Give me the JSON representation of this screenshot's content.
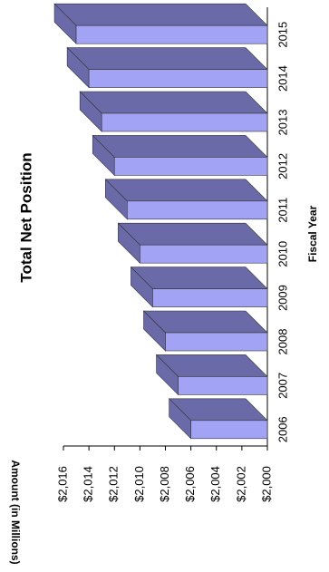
{
  "chart_data": {
    "type": "bar3d",
    "title": "Total Net Position",
    "x_label": "Fiscal Year",
    "y_label": "Amount (in Millions)",
    "categories": [
      "2006",
      "2007",
      "2008",
      "2009",
      "2010",
      "2011",
      "2012",
      "2013",
      "2014",
      "2015"
    ],
    "values": [
      2006,
      2007,
      2008,
      2009,
      2010,
      2011,
      2012,
      2013,
      2014,
      2015
    ],
    "color": "#a3a3f5",
    "side_color": "#6a6aa8",
    "ylim": [
      2000,
      2016
    ],
    "yticks": [
      {
        "value": 2000,
        "label": "$2,000"
      },
      {
        "value": 2002,
        "label": "$2,002"
      },
      {
        "value": 2004,
        "label": "$2,004"
      },
      {
        "value": 2006,
        "label": "$2,006"
      },
      {
        "value": 2008,
        "label": "$2,008"
      },
      {
        "value": 2010,
        "label": "$2,010"
      },
      {
        "value": 2012,
        "label": "$2,012"
      },
      {
        "value": 2014,
        "label": "$2,014"
      },
      {
        "value": 2016,
        "label": "$2,016"
      }
    ],
    "grid": false
  }
}
